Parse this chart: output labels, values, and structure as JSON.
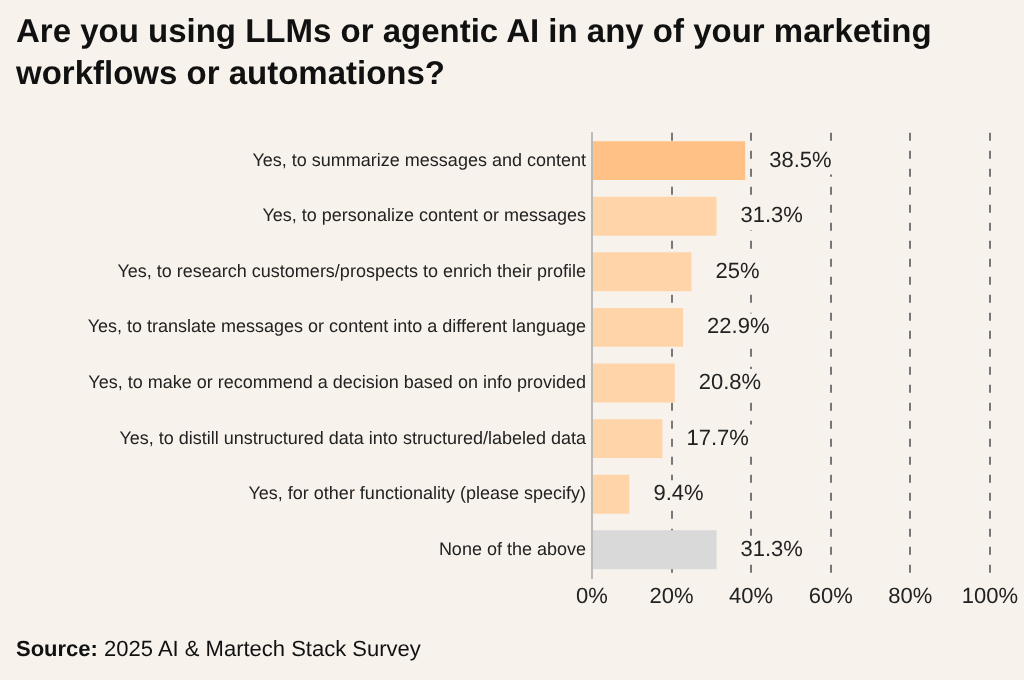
{
  "chart_data": {
    "type": "bar",
    "orientation": "horizontal",
    "title": "Are you using LLMs or agentic AI in any of your marketing workflows or automations?",
    "categories": [
      "Yes, to summarize messages and content",
      "Yes, to personalize content or messages",
      "Yes, to research customers/prospects to enrich their profile",
      "Yes, to translate messages or content into a different language",
      "Yes, to make or recommend a decision based on info provided",
      "Yes, to distill unstructured data into structured/labeled data",
      "Yes, for other functionality (please specify)",
      "None of the above"
    ],
    "values": [
      38.5,
      31.3,
      25,
      22.9,
      20.8,
      17.7,
      9.4,
      31.3
    ],
    "colors": [
      "#ffc185",
      "#ffd4a8",
      "#ffd4a8",
      "#ffd4a8",
      "#ffd4a8",
      "#ffd4a8",
      "#ffd4a8",
      "#d9d9d9"
    ],
    "value_labels": [
      "38.5%",
      "31.3%",
      "25%",
      "22.9%",
      "20.8%",
      "17.7%",
      "9.4%",
      "31.3%"
    ],
    "xlim": [
      0,
      100
    ],
    "xticks": [
      {
        "value": 0,
        "label": "0%"
      },
      {
        "value": 20,
        "label": "20%"
      },
      {
        "value": 40,
        "label": "40%"
      },
      {
        "value": 60,
        "label": "60%"
      },
      {
        "value": 80,
        "label": "80%"
      },
      {
        "value": 100,
        "label": "100%"
      }
    ],
    "grid": "x",
    "legend": false,
    "annotations": [
      "Source: 2025 AI & Martech Stack Survey"
    ]
  }
}
